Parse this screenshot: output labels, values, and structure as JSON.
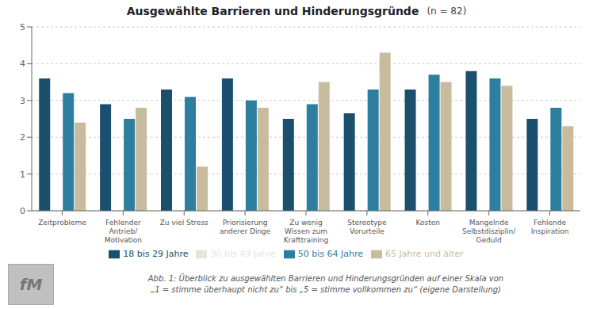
{
  "chart_data": {
    "type": "bar",
    "title": "Ausgewählte Barrieren und Hinderungsgründe",
    "subtitle": "(n = 82)",
    "categories": [
      "Zeitprobleme",
      "Fehlender\nAntrieb/\nMotivation",
      "Zu viel Stress",
      "Priorisierung\nanderer Dinge",
      "Zu wenig\nWissen zum\nKrafttraining",
      "Stereotype\nVorurteile",
      "Kosten",
      "Mangelnde\nSelbstdisziplin/\nGeduld",
      "Fehlende\nInspiration"
    ],
    "series": [
      {
        "name": "18 bis 29 Jahre",
        "color": "#1b4f6e",
        "values": [
          3.6,
          2.9,
          3.3,
          3.6,
          2.5,
          2.65,
          3.3,
          3.8,
          2.5
        ]
      },
      {
        "name": "30 bis 49 Jahre",
        "color": "#e8e4db",
        "values": [
          0.0,
          0.0,
          0.0,
          0.0,
          0.0,
          0.0,
          0.0,
          0.0,
          0.0
        ]
      },
      {
        "name": "50 bis 64 Jahre",
        "color": "#2e7f9f",
        "values": [
          3.2,
          2.5,
          3.1,
          3.0,
          2.9,
          3.3,
          3.7,
          3.6,
          2.8
        ]
      },
      {
        "name": "65 Jahre und älter",
        "color": "#c8bc9e",
        "values": [
          2.4,
          2.8,
          1.2,
          2.8,
          3.5,
          4.3,
          3.5,
          3.4,
          2.3
        ]
      }
    ],
    "ylim": [
      0,
      5
    ],
    "yticks": [
      0,
      1,
      2,
      3,
      4,
      5
    ],
    "grid": true,
    "legend": "bottom",
    "annotations": [
      "fM",
      "Abb. 1: Überblick zu ausgewählten Barrieren und Hinderungsgründen auf einer Skala von\n„1 = stimme überhaupt nicht zu“ bis „5 = stimme vollkommen zu“ (eigene Darstellung)"
    ]
  }
}
